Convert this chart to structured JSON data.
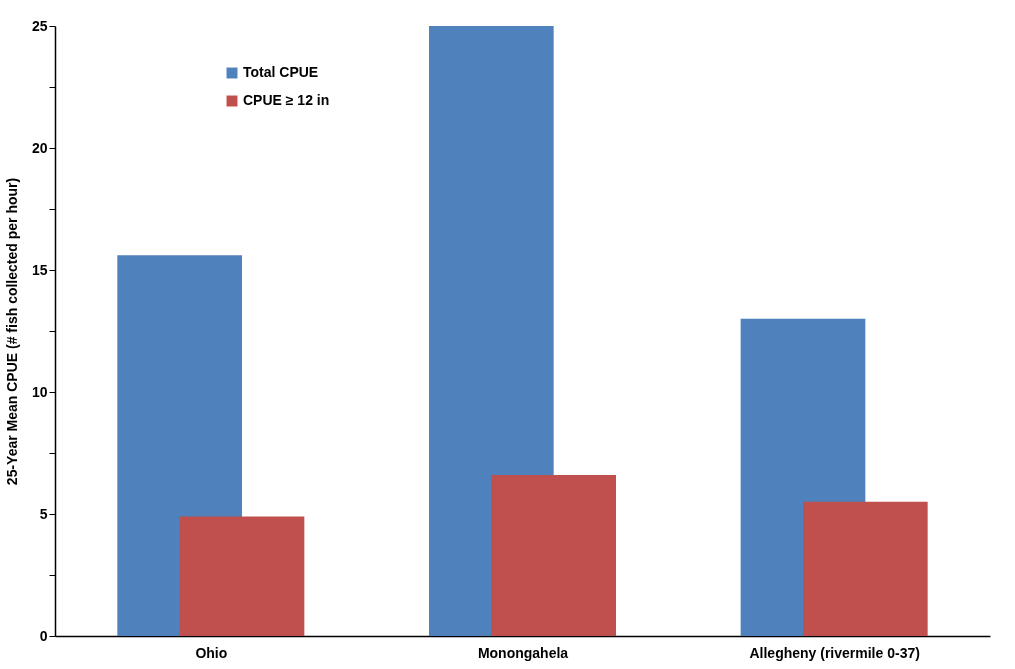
{
  "chart_data": {
    "type": "bar",
    "ylabel": "25-Year Mean CPUE (# fish collected per hour)",
    "categories": [
      "Ohio",
      "Monongahela",
      "Allegheny (rivermile 0-37)"
    ],
    "series": [
      {
        "name": "Total CPUE",
        "color": "#4f81bd",
        "values": [
          15.6,
          25.0,
          13.0
        ]
      },
      {
        "name": "CPUE ≥ 12 in",
        "color": "#c0504d",
        "values": [
          4.9,
          6.6,
          5.5
        ]
      }
    ],
    "ylim": [
      0,
      25
    ],
    "yticks": [
      0,
      {
        "value": 2.5,
        "label": null
      },
      5,
      {
        "value": 7.5,
        "label": null
      },
      10,
      {
        "value": 12.5,
        "label": null
      },
      15,
      {
        "value": 17.5,
        "label": null
      },
      20,
      {
        "value": 22.5,
        "label": null
      },
      25
    ],
    "grid": false,
    "legend": "top left"
  }
}
